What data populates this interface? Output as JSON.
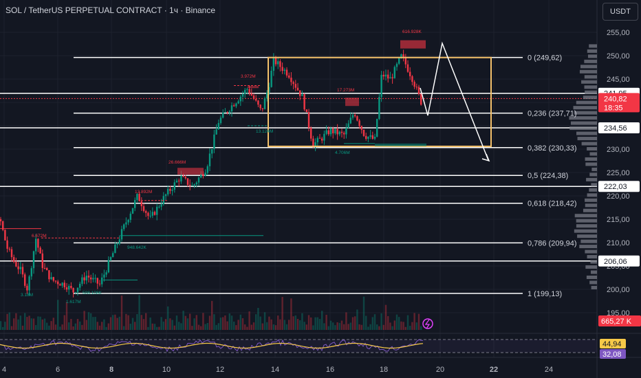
{
  "header": {
    "title": "SOL / TetherUS PERPETUAL CONTRACT · 1ч · Binance",
    "currency_button": "USDT"
  },
  "chart_data": {
    "type": "candlestick",
    "y_axis": {
      "min": 195,
      "max": 255,
      "ticks": [
        "255,00",
        "250,00",
        "245,00",
        "240,00",
        "235,00",
        "230,00",
        "225,00",
        "220,00",
        "215,00",
        "210,00",
        "205,00",
        "200,00",
        "195,00"
      ]
    },
    "x_axis": {
      "ticks": [
        "4",
        "6",
        "8",
        "10",
        "12",
        "14",
        "16",
        "18",
        "20",
        "22",
        "24"
      ]
    },
    "fib_levels": [
      {
        "ratio": "0",
        "price": 249.62,
        "label": "0 (249,62)"
      },
      {
        "ratio": "0,236",
        "price": 237.71,
        "label": "0,236 (237,71)"
      },
      {
        "ratio": "0,382",
        "price": 230.33,
        "label": "0,382 (230,33)"
      },
      {
        "ratio": "0,5",
        "price": 224.38,
        "label": "0,5 (224,38)"
      },
      {
        "ratio": "0,618",
        "price": 218.42,
        "label": "0,618 (218,42)"
      },
      {
        "ratio": "0,786",
        "price": 209.94,
        "label": "0,786 (209,94)"
      },
      {
        "ratio": "1",
        "price": 199.13,
        "label": "1 (199,13)"
      }
    ],
    "price_labels": [
      {
        "price": 241.95,
        "text": "241,95",
        "style": "white"
      },
      {
        "price": 240.82,
        "text": "240,82",
        "sub": "18:35",
        "style": "red"
      },
      {
        "price": 234.56,
        "text": "234,56",
        "style": "white"
      },
      {
        "price": 222.03,
        "text": "222,03",
        "style": "white"
      },
      {
        "price": 206.06,
        "text": "206,06",
        "style": "white"
      }
    ],
    "volume_label": "665,27 K",
    "rsi_labels": [
      {
        "text": "44,94",
        "style": "yellow"
      },
      {
        "text": "32,08",
        "style": "purple"
      }
    ],
    "annotations": [
      {
        "text": "616.928K",
        "color": "#f23645"
      },
      {
        "text": "3.972M",
        "color": "#f23645"
      },
      {
        "text": "17.273M",
        "color": "#f23645"
      },
      {
        "text": "13.124M",
        "color": "#089981"
      },
      {
        "text": "4.706M",
        "color": "#089981"
      },
      {
        "text": "26.666M",
        "color": "#f23645"
      },
      {
        "text": "13.892M",
        "color": "#f23645"
      },
      {
        "text": "948.642K",
        "color": "#089981"
      },
      {
        "text": "6.672M",
        "color": "#f23645"
      },
      {
        "text": "3.18M",
        "color": "#089981"
      },
      {
        "text": "1.617M",
        "color": "#089981"
      },
      {
        "text": "508.108K",
        "color": "#089981"
      }
    ],
    "colors": {
      "up": "#089981",
      "down": "#f23645",
      "box": "#f5c26b",
      "rsi": "#7e57c2",
      "rsi_ma": "#f7c948",
      "background": "#131722"
    }
  }
}
